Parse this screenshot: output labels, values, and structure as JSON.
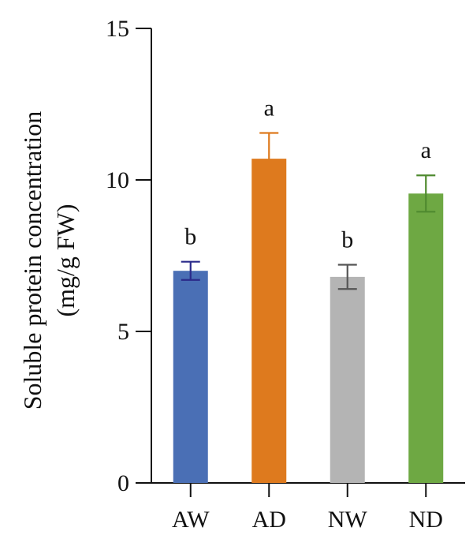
{
  "chart_data": {
    "type": "bar",
    "title": "",
    "xlabel": "",
    "ylabel_lines": [
      "Soluble protein concentration",
      "(mg/g FW)"
    ],
    "ylim": [
      0,
      15
    ],
    "yticks": [
      0,
      5,
      10,
      15
    ],
    "ytick_labels": [
      "0",
      "5",
      "10",
      "15"
    ],
    "grid": false,
    "categories": [
      "AW",
      "AD",
      "NW",
      "ND"
    ],
    "values": [
      7.0,
      10.7,
      6.8,
      9.55
    ],
    "errors": [
      0.3,
      0.85,
      0.4,
      0.6
    ],
    "significance": [
      "b",
      "a",
      "b",
      "a"
    ],
    "colors": [
      "#4a6fb5",
      "#de7a1e",
      "#b4b4b4",
      "#6ea843"
    ],
    "error_bar_colors": [
      "#2a2a8a",
      "#de7a1e",
      "#555555",
      "#4f8a2f"
    ]
  }
}
